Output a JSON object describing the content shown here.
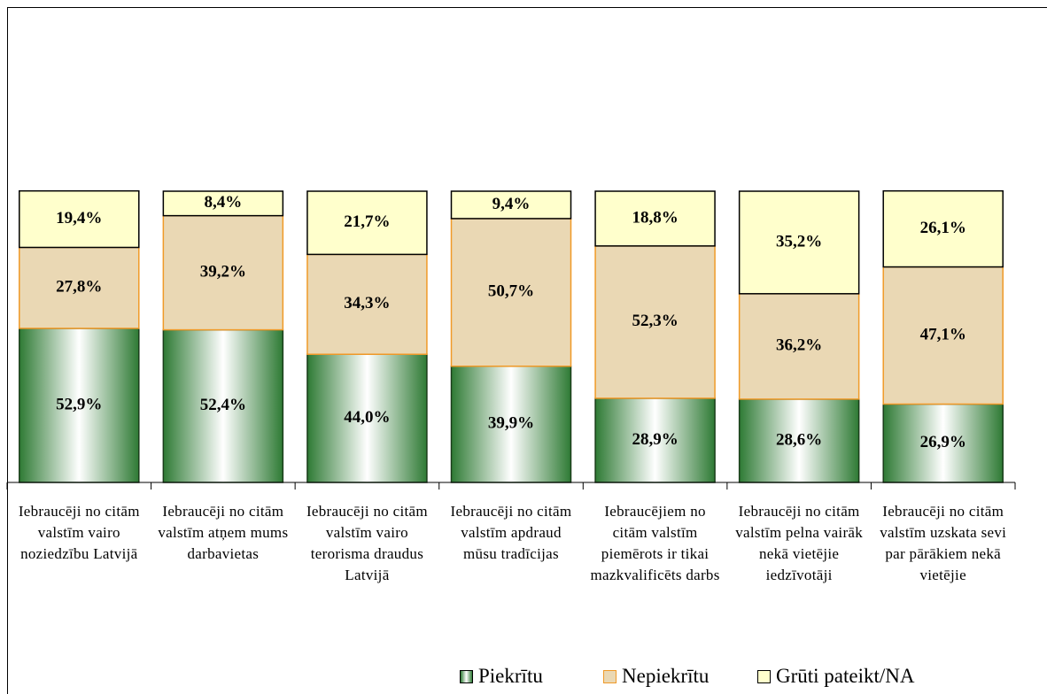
{
  "chart_data": {
    "type": "stacked_bar",
    "categories": [
      "Iebraucēji no citām valstīm vairo noziedzību Latvijā",
      "Iebraucēji no citām valstīm atņem mums darbavietas",
      "Iebraucēji no citām valstīm vairo terorisma draudus Latvijā",
      "Iebraucēji no citām valstīm apdraud mūsu tradīcijas",
      "Iebraucējiem no citām valstīm piemērots ir tikai mazkvalificēts darbs",
      "Iebraucēji no citām valstīm pelna vairāk nekā vietējie iedzīvotāji",
      "Iebraucēji no citām valstīm uzskata sevi par pārākiem nekā vietējie"
    ],
    "series": [
      {
        "name": "Piekrītu",
        "color": "#2e7a34",
        "edge": "#1a3d1a",
        "fill_style": "gradient",
        "values": [
          52.9,
          52.4,
          44.0,
          39.9,
          28.9,
          28.6,
          26.9
        ],
        "value_labels": [
          "52,9%",
          "52,4%",
          "44,0%",
          "39,9%",
          "28,9%",
          "28,6%",
          "26,9%"
        ]
      },
      {
        "name": "Nepiekrītu",
        "color": "#ead8b4",
        "edge": "#f09a28",
        "fill_style": "flat",
        "values": [
          27.8,
          39.2,
          34.3,
          50.7,
          52.3,
          36.2,
          47.1
        ],
        "value_labels": [
          "27,8%",
          "39,2%",
          "34,3%",
          "50,7%",
          "52,3%",
          "36,2%",
          "47,1%"
        ]
      },
      {
        "name": "Grūti pateikt/NA",
        "color": "#ffffcc",
        "edge": "#000000",
        "fill_style": "flat",
        "values": [
          19.4,
          8.4,
          21.7,
          9.4,
          18.8,
          35.2,
          26.1
        ],
        "value_labels": [
          "19,4%",
          "8,4%",
          "21,7%",
          "9,4%",
          "18,8%",
          "35,2%",
          "26,1%"
        ]
      }
    ],
    "ylim": [
      0,
      100
    ]
  }
}
